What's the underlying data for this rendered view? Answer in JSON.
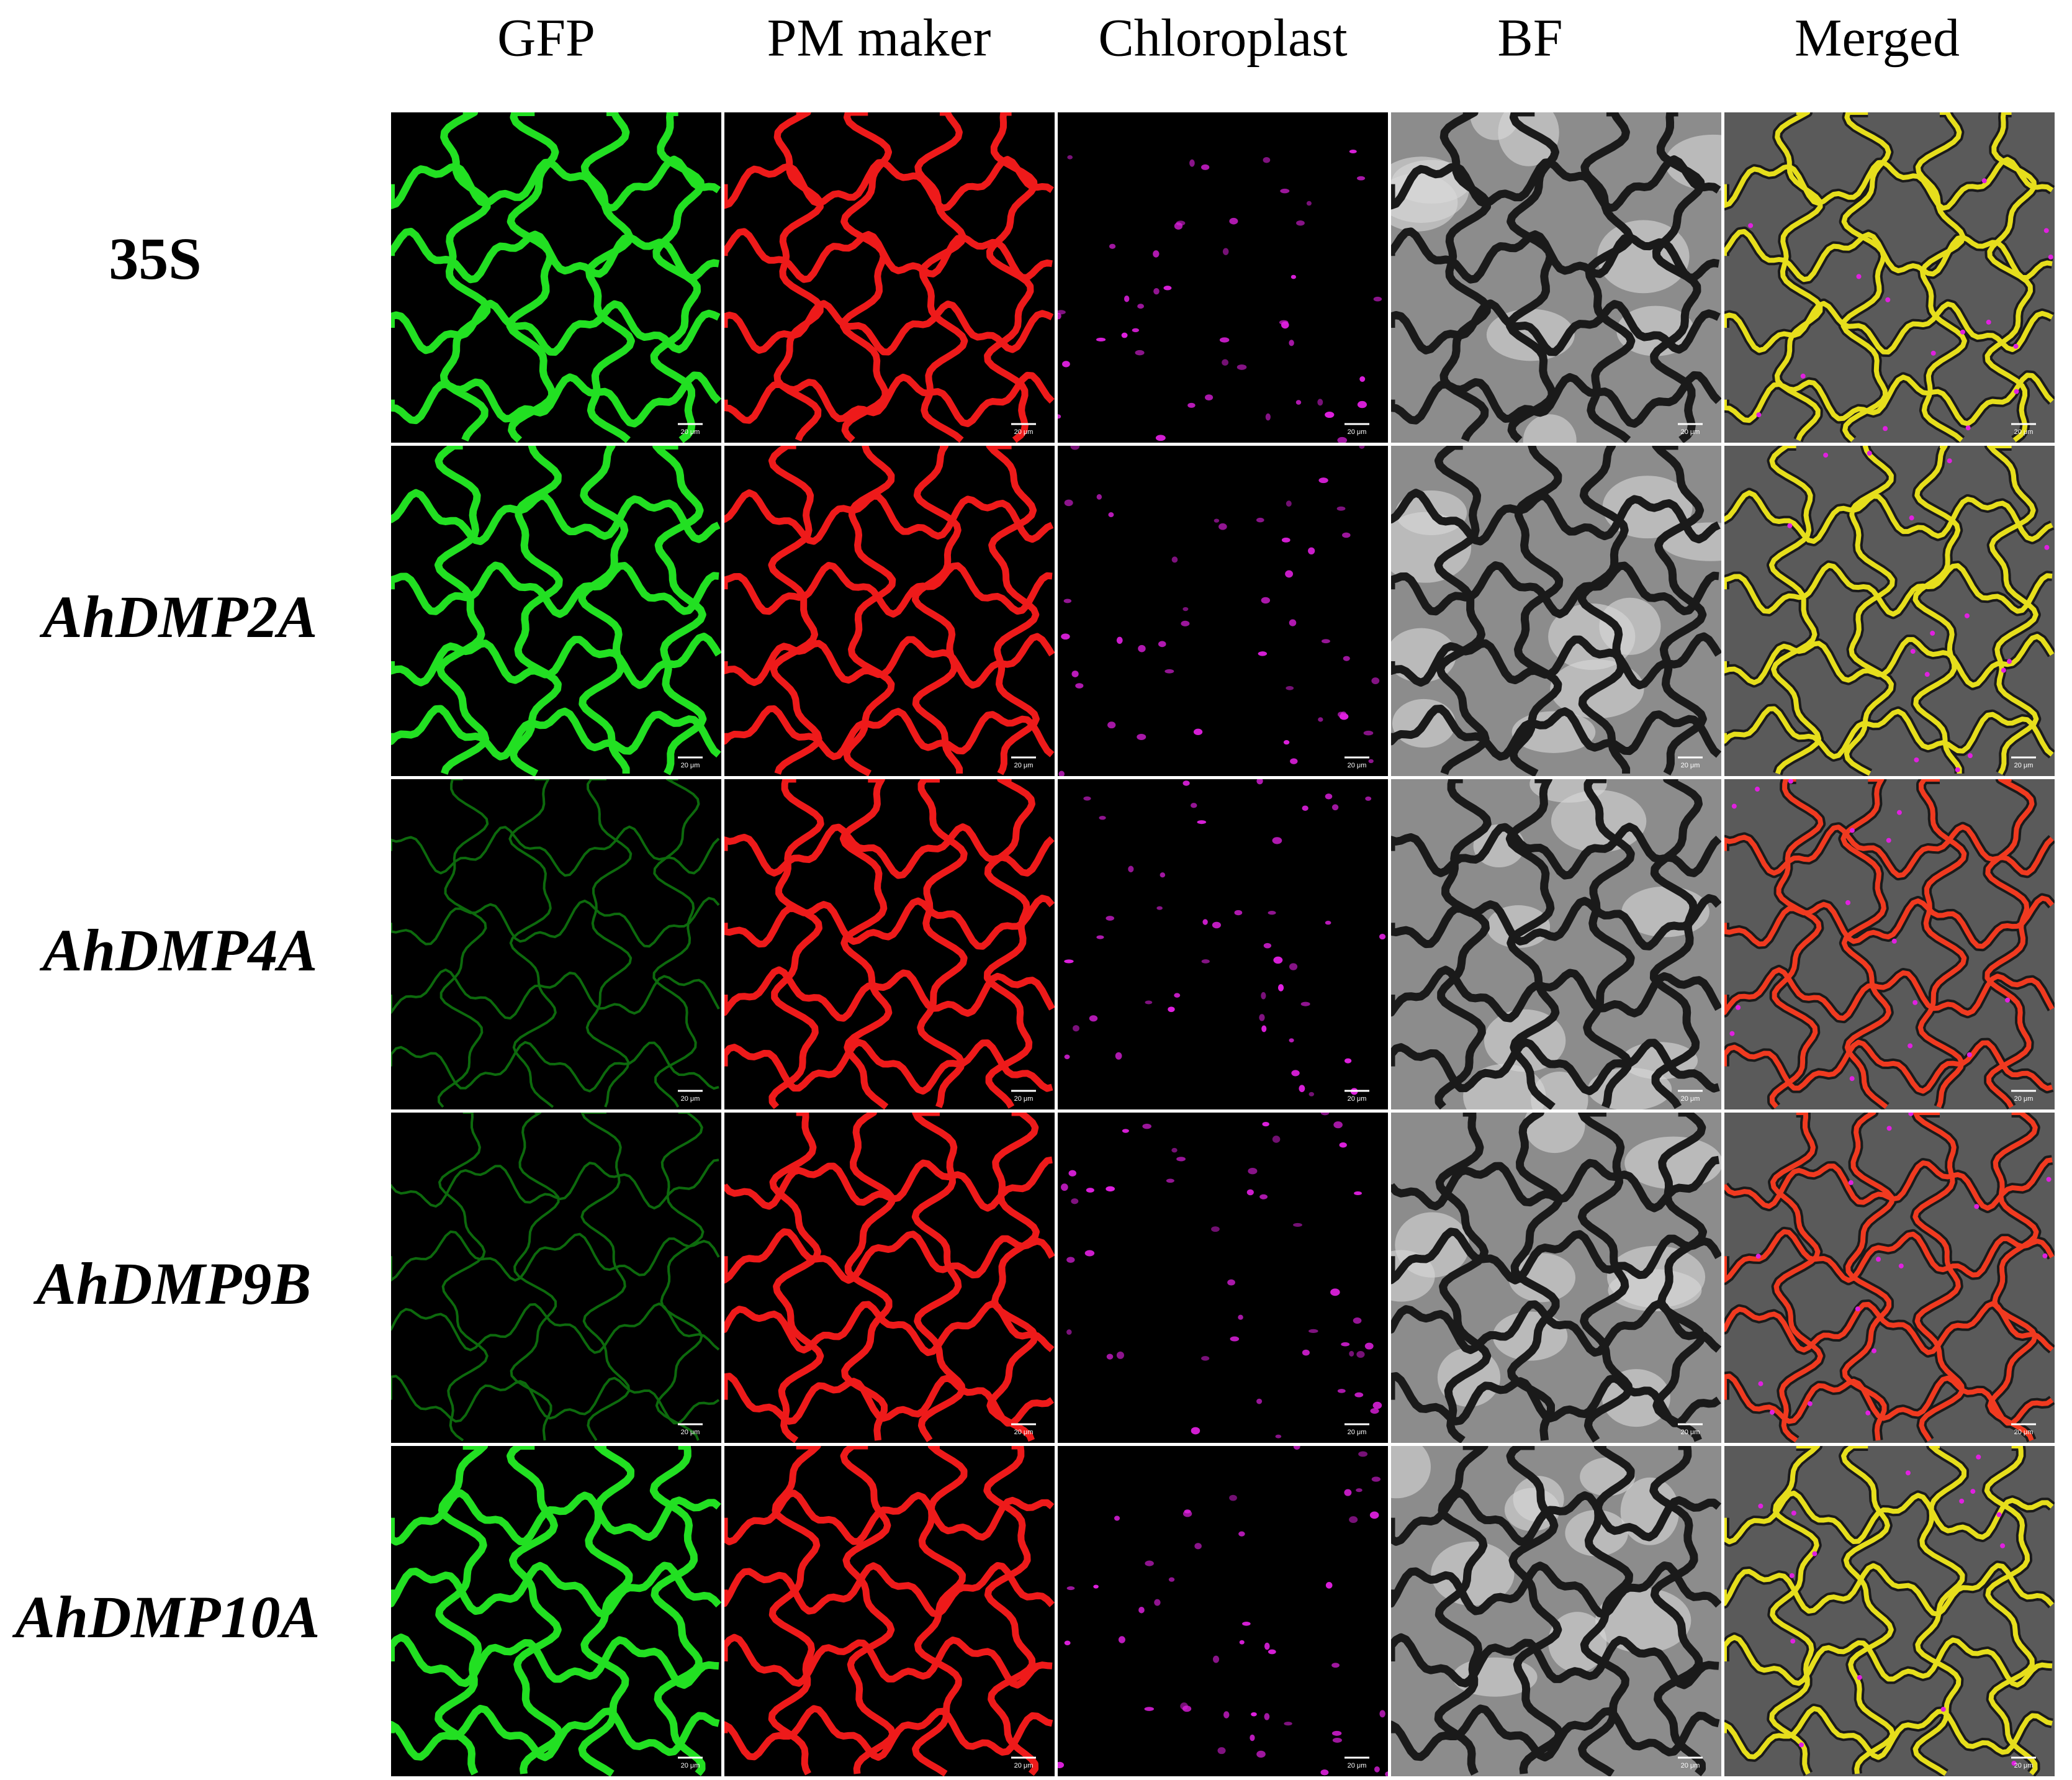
{
  "columns": [
    "GFP",
    "PM maker",
    "Chloroplast",
    "BF",
    "Merged"
  ],
  "rows": [
    "35S",
    "AhDMP2A",
    "AhDMP4A",
    "AhDMP9B",
    "AhDMP10A"
  ],
  "scale_bar": "20 μm"
}
